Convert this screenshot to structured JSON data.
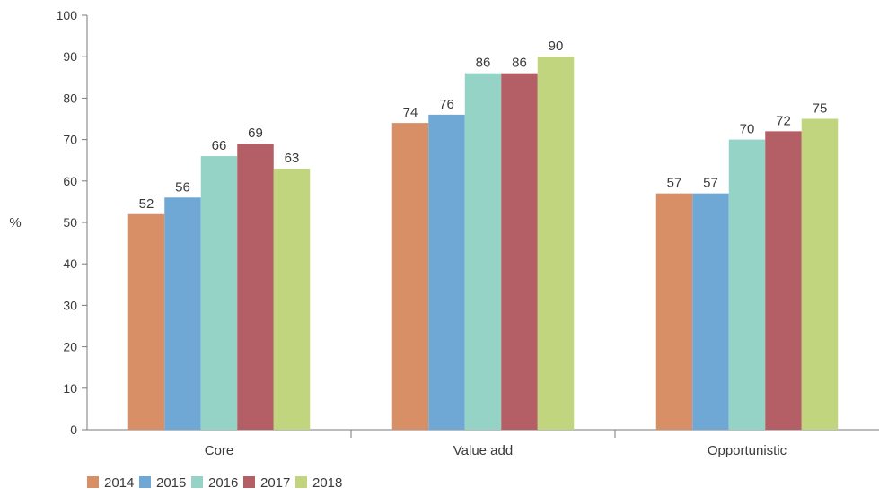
{
  "chart_data": {
    "type": "bar",
    "categories": [
      "Core",
      "Value add",
      "Opportunistic"
    ],
    "series": [
      {
        "name": "2014",
        "values": [
          52,
          74,
          57
        ],
        "color": "#D98F66"
      },
      {
        "name": "2015",
        "values": [
          56,
          76,
          57
        ],
        "color": "#6FA8D4"
      },
      {
        "name": "2016",
        "values": [
          66,
          86,
          70
        ],
        "color": "#94D3C6"
      },
      {
        "name": "2017",
        "values": [
          69,
          86,
          72
        ],
        "color": "#B45F66"
      },
      {
        "name": "2018",
        "values": [
          63,
          90,
          75
        ],
        "color": "#C0D57E"
      }
    ],
    "ylabel": "%",
    "ylim": [
      0,
      100
    ],
    "yticks": [
      0,
      10,
      20,
      30,
      40,
      50,
      60,
      70,
      80,
      90,
      100
    ],
    "grid": false,
    "legend": "bottom-left",
    "axis_color": "#7a7a7a"
  }
}
